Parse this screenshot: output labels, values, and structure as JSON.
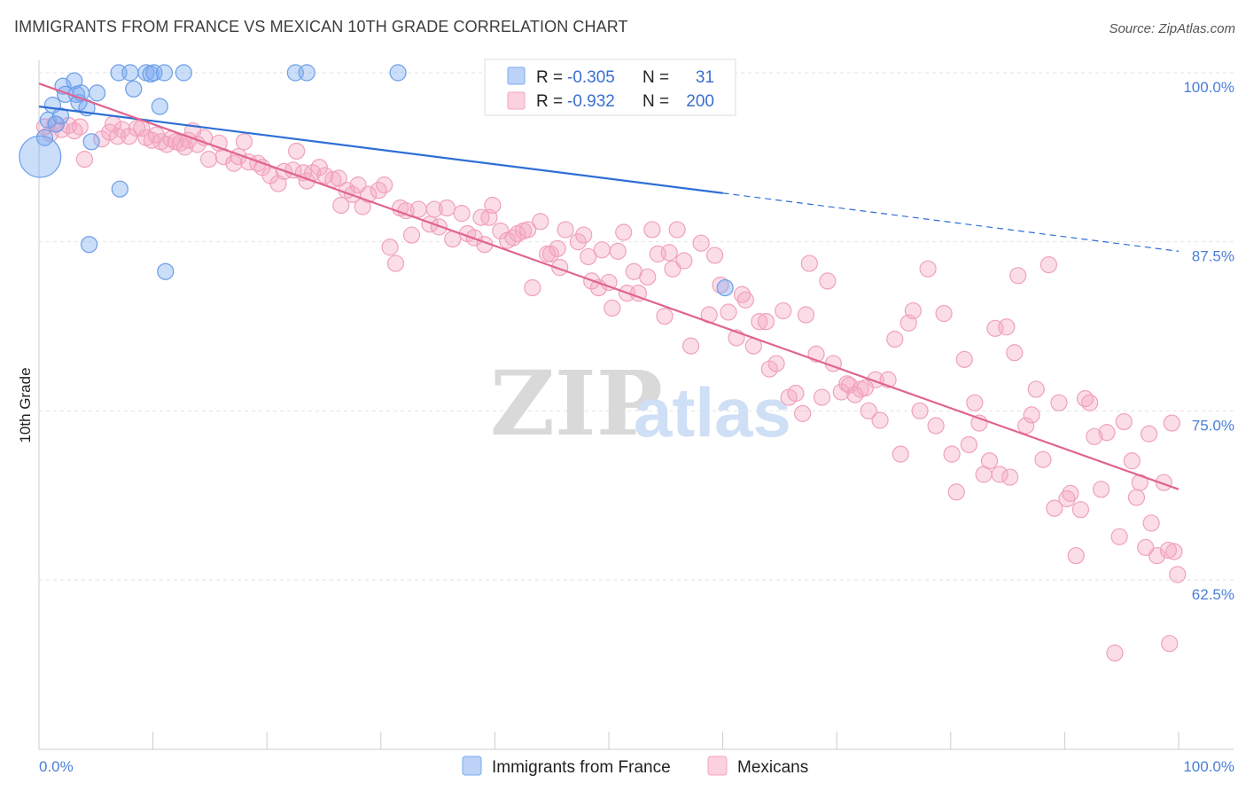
{
  "title": "IMMIGRANTS FROM FRANCE VS MEXICAN 10TH GRADE CORRELATION CHART",
  "source": "Source: ZipAtlas.com",
  "watermark": {
    "zip": "ZIP",
    "atlas": "atlas"
  },
  "chart_data": {
    "type": "scatter",
    "xlabel": "",
    "ylabel": "10th Grade",
    "xlim": [
      0,
      100
    ],
    "ylim": [
      52.5,
      102
    ],
    "x_tick_labels": [
      "0.0%",
      "100.0%"
    ],
    "y_ticks": [
      {
        "value": 100,
        "label": "100.0%"
      },
      {
        "value": 87.5,
        "label": "87.5%"
      },
      {
        "value": 75,
        "label": "75.0%"
      },
      {
        "value": 62.5,
        "label": "62.5%"
      }
    ],
    "grid": true,
    "legend_position": "top-center",
    "series": [
      {
        "name": "Immigrants from France",
        "color": "#7aaaf0",
        "line_color": "#2e6fd6",
        "stats": {
          "r_label": "R =",
          "r": "-0.305",
          "n_label": "N =",
          "n": "31"
        },
        "trend": {
          "x0": 0,
          "y0": 97.5,
          "x1": 60,
          "y1": 91.1,
          "dash_x1": 100,
          "dash_y1": 86.8
        },
        "points": [
          [
            0.5,
            95.2,
            1
          ],
          [
            0.8,
            96.5,
            1
          ],
          [
            1.2,
            97.6,
            1
          ],
          [
            1.5,
            96.2,
            1
          ],
          [
            1.9,
            96.8,
            1
          ],
          [
            2.1,
            99.0,
            1
          ],
          [
            2.3,
            98.4,
            1
          ],
          [
            3.1,
            99.4,
            1
          ],
          [
            3.3,
            98.4,
            1
          ],
          [
            3.5,
            97.8,
            1
          ],
          [
            3.7,
            98.5,
            1
          ],
          [
            4.2,
            97.4,
            1
          ],
          [
            4.6,
            94.9,
            1
          ],
          [
            5.1,
            98.5,
            1
          ],
          [
            0.1,
            93.8,
            2.6
          ],
          [
            7.0,
            100.0,
            1
          ],
          [
            8.0,
            100.0,
            1
          ],
          [
            8.3,
            98.8,
            1
          ],
          [
            9.4,
            100.0,
            1
          ],
          [
            9.8,
            99.9,
            1
          ],
          [
            10.1,
            100.0,
            1
          ],
          [
            10.6,
            97.5,
            1
          ],
          [
            11.0,
            100.0,
            1
          ],
          [
            12.7,
            100.0,
            1
          ],
          [
            7.1,
            91.4,
            1
          ],
          [
            4.4,
            87.3,
            1
          ],
          [
            11.1,
            85.3,
            1
          ],
          [
            22.5,
            100.0,
            1
          ],
          [
            23.5,
            100.0,
            1
          ],
          [
            31.5,
            100.0,
            1
          ],
          [
            60.2,
            84.1,
            1
          ]
        ]
      },
      {
        "name": "Mexicans",
        "color": "#f4a5c1",
        "line_color": "#e0648f",
        "stats": {
          "r_label": "R =",
          "r": "-0.932",
          "n_label": "N =",
          "n": "200"
        },
        "trend": {
          "x0": 0,
          "y0": 99.2,
          "x1": 100,
          "y1": 69.2
        },
        "points": [
          [
            0.5,
            96.0
          ],
          [
            1.0,
            95.5
          ],
          [
            1.4,
            96.2
          ],
          [
            2.0,
            95.8
          ],
          [
            2.6,
            96.1
          ],
          [
            3.1,
            95.7
          ],
          [
            3.6,
            96.0
          ],
          [
            4.0,
            93.6
          ],
          [
            5.5,
            95.1
          ],
          [
            6.2,
            95.6
          ],
          [
            6.5,
            96.2
          ],
          [
            6.9,
            95.3
          ],
          [
            7.3,
            95.8
          ],
          [
            7.9,
            95.3
          ],
          [
            8.6,
            95.9
          ],
          [
            9.0,
            95.9
          ],
          [
            9.4,
            95.2
          ],
          [
            9.9,
            95.0
          ],
          [
            10.3,
            95.4
          ],
          [
            10.7,
            94.9
          ],
          [
            11.2,
            94.7
          ],
          [
            11.6,
            95.1
          ],
          [
            12.0,
            94.9
          ],
          [
            12.4,
            94.8
          ],
          [
            12.8,
            94.5
          ],
          [
            13.1,
            95.0
          ],
          [
            13.5,
            95.7
          ],
          [
            13.9,
            94.7
          ],
          [
            14.5,
            95.2
          ],
          [
            14.9,
            93.6
          ],
          [
            15.8,
            94.8
          ],
          [
            16.2,
            93.8
          ],
          [
            17.1,
            93.3
          ],
          [
            17.5,
            93.8
          ],
          [
            18.0,
            94.9
          ],
          [
            18.4,
            93.4
          ],
          [
            19.2,
            93.3
          ],
          [
            19.6,
            93.0
          ],
          [
            20.3,
            92.4
          ],
          [
            21.0,
            91.8
          ],
          [
            21.5,
            92.7
          ],
          [
            22.3,
            92.8
          ],
          [
            22.6,
            94.2
          ],
          [
            23.2,
            92.6
          ],
          [
            23.5,
            92.0
          ],
          [
            24.0,
            92.6
          ],
          [
            24.6,
            93.0
          ],
          [
            25.1,
            92.4
          ],
          [
            25.8,
            92.1
          ],
          [
            26.3,
            92.2
          ],
          [
            26.5,
            90.2
          ],
          [
            27.0,
            91.3
          ],
          [
            27.5,
            91.0
          ],
          [
            28.0,
            91.7
          ],
          [
            28.4,
            90.1
          ],
          [
            28.9,
            91.0
          ],
          [
            29.8,
            91.3
          ],
          [
            30.3,
            91.7
          ],
          [
            30.8,
            87.1
          ],
          [
            31.3,
            85.9
          ],
          [
            31.7,
            90.0
          ],
          [
            32.2,
            89.8
          ],
          [
            32.7,
            88.0
          ],
          [
            33.3,
            89.9
          ],
          [
            34.3,
            88.8
          ],
          [
            34.7,
            89.9
          ],
          [
            35.1,
            88.6
          ],
          [
            35.8,
            90.0
          ],
          [
            36.3,
            87.7
          ],
          [
            37.1,
            89.6
          ],
          [
            37.6,
            88.1
          ],
          [
            38.2,
            87.8
          ],
          [
            38.8,
            89.3
          ],
          [
            39.1,
            87.3
          ],
          [
            39.5,
            89.3
          ],
          [
            39.8,
            90.2
          ],
          [
            40.5,
            88.3
          ],
          [
            41.1,
            87.6
          ],
          [
            41.6,
            87.8
          ],
          [
            42.0,
            88.1
          ],
          [
            42.5,
            88.3
          ],
          [
            42.9,
            88.4
          ],
          [
            43.3,
            84.1
          ],
          [
            44.0,
            89.0
          ],
          [
            44.6,
            86.6
          ],
          [
            44.9,
            86.6
          ],
          [
            45.5,
            87.0
          ],
          [
            45.7,
            85.6
          ],
          [
            46.2,
            88.4
          ],
          [
            47.3,
            87.5
          ],
          [
            47.8,
            88.0
          ],
          [
            48.2,
            86.4
          ],
          [
            48.5,
            84.6
          ],
          [
            49.1,
            84.1
          ],
          [
            49.4,
            86.9
          ],
          [
            50.0,
            84.5
          ],
          [
            50.3,
            82.6
          ],
          [
            50.8,
            86.8
          ],
          [
            51.3,
            88.2
          ],
          [
            51.6,
            83.7
          ],
          [
            52.2,
            85.3
          ],
          [
            52.6,
            83.7
          ],
          [
            53.4,
            84.9
          ],
          [
            53.8,
            88.4
          ],
          [
            54.3,
            86.6
          ],
          [
            54.9,
            82.0
          ],
          [
            55.3,
            86.7
          ],
          [
            55.6,
            85.5
          ],
          [
            56.0,
            88.4
          ],
          [
            56.6,
            86.1
          ],
          [
            57.2,
            79.8
          ],
          [
            58.1,
            87.4
          ],
          [
            58.8,
            82.1
          ],
          [
            59.3,
            86.5
          ],
          [
            59.8,
            84.3
          ],
          [
            60.5,
            82.3
          ],
          [
            61.2,
            80.4
          ],
          [
            61.7,
            83.6
          ],
          [
            62.0,
            83.2
          ],
          [
            62.7,
            79.8
          ],
          [
            63.2,
            81.6
          ],
          [
            63.8,
            81.6
          ],
          [
            64.1,
            78.1
          ],
          [
            64.7,
            78.5
          ],
          [
            65.3,
            82.4
          ],
          [
            65.8,
            76.0
          ],
          [
            66.4,
            76.3
          ],
          [
            67.0,
            74.8
          ],
          [
            67.3,
            82.1
          ],
          [
            67.6,
            85.9
          ],
          [
            68.2,
            79.2
          ],
          [
            68.7,
            76.0
          ],
          [
            69.2,
            84.6
          ],
          [
            69.7,
            78.5
          ],
          [
            70.4,
            76.4
          ],
          [
            70.9,
            77.0
          ],
          [
            71.1,
            76.9
          ],
          [
            71.6,
            76.2
          ],
          [
            72.1,
            76.6
          ],
          [
            72.5,
            76.7
          ],
          [
            72.8,
            75.0
          ],
          [
            73.4,
            77.3
          ],
          [
            73.8,
            74.3
          ],
          [
            74.5,
            77.3
          ],
          [
            75.1,
            80.3
          ],
          [
            75.6,
            71.8
          ],
          [
            76.3,
            81.5
          ],
          [
            76.7,
            82.4
          ],
          [
            77.3,
            75.0
          ],
          [
            78.0,
            85.5
          ],
          [
            78.7,
            73.9
          ],
          [
            79.4,
            82.2
          ],
          [
            80.1,
            71.8
          ],
          [
            80.5,
            69.0
          ],
          [
            81.2,
            78.8
          ],
          [
            81.6,
            72.5
          ],
          [
            82.1,
            75.6
          ],
          [
            82.5,
            74.1
          ],
          [
            82.9,
            70.3
          ],
          [
            83.4,
            71.3
          ],
          [
            83.9,
            81.1
          ],
          [
            84.3,
            70.3
          ],
          [
            84.9,
            81.2
          ],
          [
            85.2,
            70.1
          ],
          [
            85.6,
            79.3
          ],
          [
            85.9,
            85.0
          ],
          [
            86.6,
            73.9
          ],
          [
            87.1,
            74.7
          ],
          [
            87.5,
            76.6
          ],
          [
            88.1,
            71.4
          ],
          [
            88.6,
            85.8
          ],
          [
            89.1,
            67.8
          ],
          [
            89.5,
            75.6
          ],
          [
            90.2,
            68.5
          ],
          [
            90.5,
            68.9
          ],
          [
            91.0,
            64.3
          ],
          [
            91.4,
            67.7
          ],
          [
            91.8,
            75.9
          ],
          [
            92.2,
            75.6
          ],
          [
            92.6,
            73.1
          ],
          [
            93.2,
            69.2
          ],
          [
            93.7,
            73.4
          ],
          [
            94.4,
            57.1
          ],
          [
            94.8,
            65.7
          ],
          [
            95.2,
            74.2
          ],
          [
            95.9,
            71.3
          ],
          [
            96.3,
            68.6
          ],
          [
            96.6,
            69.7
          ],
          [
            97.1,
            64.9
          ],
          [
            97.4,
            73.3
          ],
          [
            97.6,
            66.7
          ],
          [
            98.1,
            64.3
          ],
          [
            98.7,
            69.7
          ],
          [
            99.1,
            64.7
          ],
          [
            99.4,
            74.1
          ],
          [
            99.6,
            64.6
          ],
          [
            99.9,
            62.9
          ],
          [
            99.2,
            57.8
          ]
        ]
      }
    ]
  }
}
